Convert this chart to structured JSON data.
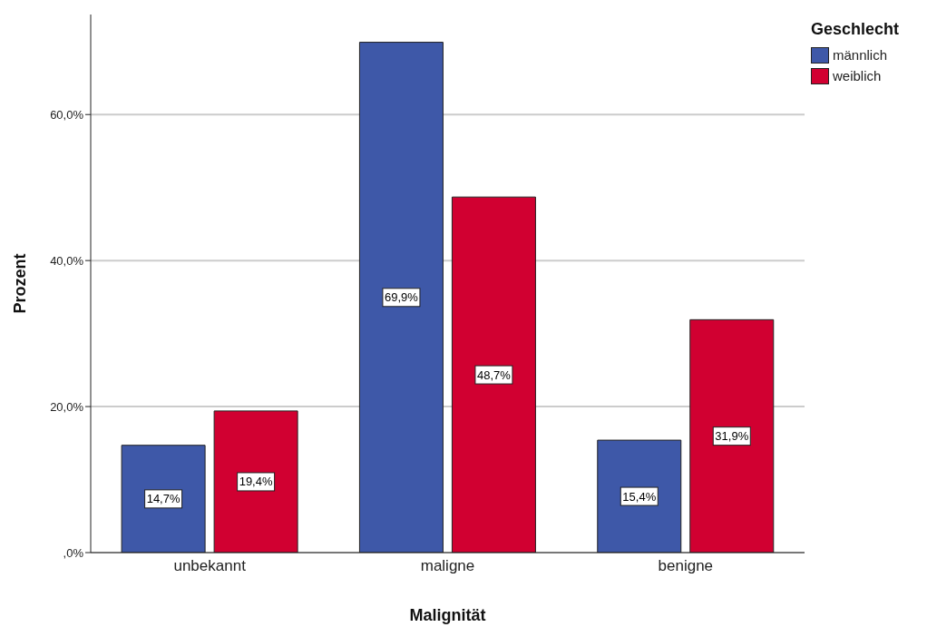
{
  "chart_data": {
    "type": "bar",
    "xlabel": "Malignität",
    "ylabel": "Prozent",
    "legend_title": "Geschlecht",
    "legend": "top right",
    "grid": "y",
    "categories": [
      "unbekannt",
      "maligne",
      "benigne"
    ],
    "series": [
      {
        "name": "männlich",
        "color": "#3e58a8",
        "values": [
          14.7,
          69.9,
          15.4
        ],
        "value_labels": [
          "14,7%",
          "69,9%",
          "15,4%"
        ]
      },
      {
        "name": "weiblich",
        "color": "#d10031",
        "values": [
          19.4,
          48.7,
          31.9
        ],
        "value_labels": [
          "19,4%",
          "48,7%",
          "31,9%"
        ]
      }
    ],
    "ylim": [
      0,
      73.7
    ],
    "yticks": [
      {
        "value": 0,
        "label": ",0%"
      },
      {
        "value": 20,
        "label": "20,0%"
      },
      {
        "value": 40,
        "label": "40,0%"
      },
      {
        "value": 60,
        "label": "60,0%"
      }
    ]
  }
}
